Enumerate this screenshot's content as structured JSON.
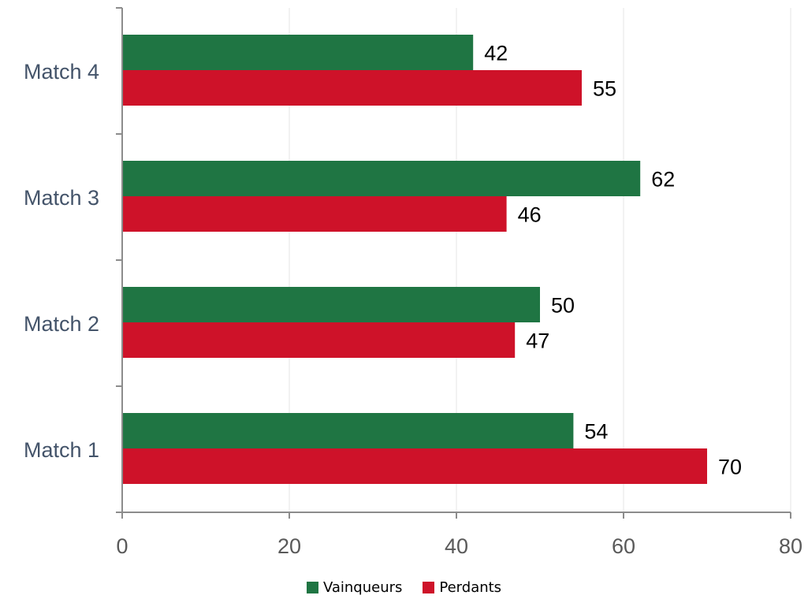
{
  "chart_data": {
    "type": "bar",
    "orientation": "horizontal",
    "categories": [
      "Match 1",
      "Match 2",
      "Match 3",
      "Match 4"
    ],
    "series": [
      {
        "name": "Vainqueurs",
        "values": [
          54,
          50,
          62,
          42
        ],
        "color": "#1f7543"
      },
      {
        "name": "Perdants",
        "values": [
          70,
          47,
          46,
          55
        ],
        "color": "#ce1229"
      }
    ],
    "title": "",
    "xlabel": "",
    "ylabel": "",
    "xlim": [
      0,
      80
    ],
    "xticks": [
      0,
      20,
      40,
      60,
      80
    ],
    "grid": true,
    "legend_position": "bottom",
    "data_labels": true
  }
}
